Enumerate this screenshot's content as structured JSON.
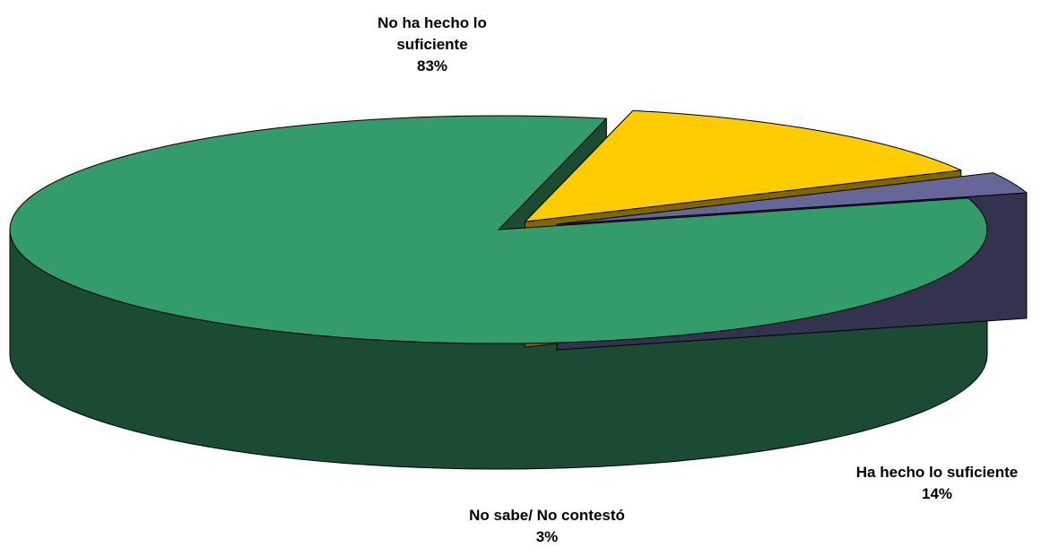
{
  "chart_data": {
    "type": "pie",
    "three_d": true,
    "exploded": true,
    "categories": [
      "No ha hecho lo suficiente",
      "Ha hecho lo suficiente",
      "No sabe/ No contestó"
    ],
    "values": [
      83,
      14,
      3
    ],
    "value_labels": [
      "83%",
      "14%",
      "3%"
    ],
    "colors": {
      "top": [
        "#349b6b",
        "#ffcc00",
        "#666699"
      ],
      "side": [
        "#1c4b33",
        "#806600",
        "#333350"
      ]
    },
    "title": "",
    "legend": "none"
  }
}
